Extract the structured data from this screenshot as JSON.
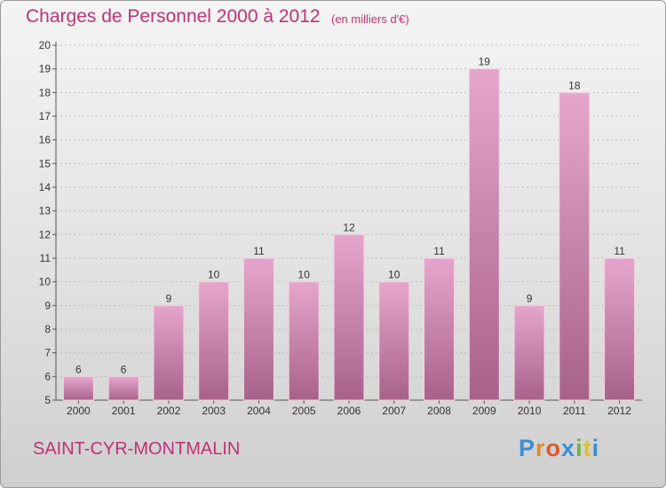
{
  "title": "Charges de Personnel 2000 à 2012",
  "subtitle": "(en milliers d'€)",
  "commune": "SAINT-CYR-MONTMALIN",
  "logo": {
    "letters": [
      "P",
      "r",
      "o",
      "x",
      "i",
      "t",
      "i"
    ],
    "colors": [
      "#3b8fd6",
      "#e08a2a",
      "#e05a2a",
      "#3b8fd6",
      "#6fb63a",
      "#e0c02a",
      "#3b8fd6"
    ]
  },
  "colors": {
    "bar": "#d47fb0",
    "bar_dark": "#b0678f",
    "title": "#c03272",
    "grid": "#bdbdbd"
  },
  "chart_data": {
    "type": "bar",
    "title": "Charges de Personnel 2000 à 2012",
    "subtitle": "(en milliers d'€)",
    "categories": [
      "2000",
      "2001",
      "2002",
      "2003",
      "2004",
      "2005",
      "2006",
      "2007",
      "2008",
      "2009",
      "2010",
      "2011",
      "2012"
    ],
    "values": [
      6,
      6,
      9,
      10,
      11,
      10,
      12,
      10,
      11,
      19,
      9,
      18,
      11
    ],
    "data_labels": [
      "6",
      "6",
      "9",
      "10",
      "11",
      "10",
      "12",
      "10",
      "11",
      "19",
      "9",
      "18",
      "11"
    ],
    "yticks": [
      "5",
      "6",
      "7",
      "8",
      "9",
      "10",
      "11",
      "12",
      "13",
      "14",
      "15",
      "16",
      "17",
      "18",
      "19",
      "20"
    ],
    "ylim": [
      5,
      20
    ],
    "grid": true,
    "legend": "none"
  }
}
